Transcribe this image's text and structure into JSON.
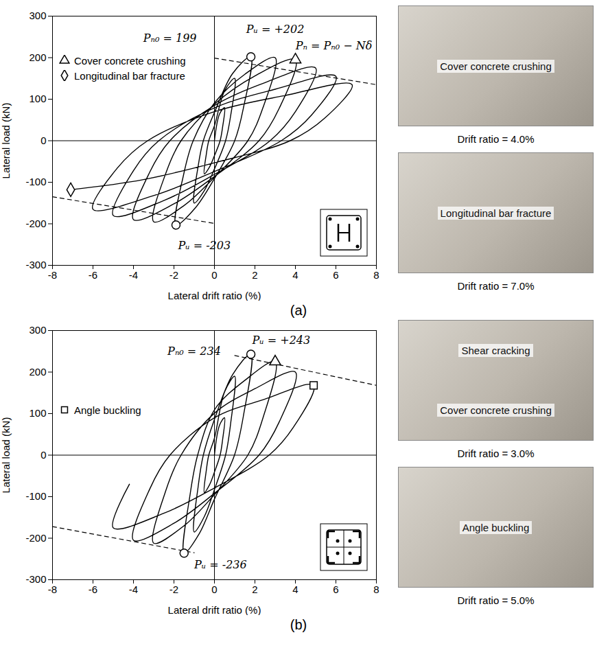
{
  "chart_data": [
    {
      "type": "line",
      "caption": "(a)",
      "x_label": "Lateral drift ratio (%)",
      "y_label": "Lateral load (kN)",
      "xlim": [
        -8,
        8
      ],
      "xticks": [
        -8,
        -6,
        -4,
        -2,
        0,
        2,
        4,
        6,
        8
      ],
      "ylim": [
        -300,
        300
      ],
      "yticks": [
        -300,
        -200,
        -100,
        0,
        100,
        200,
        300
      ],
      "color": "#000000",
      "legend": "top-left",
      "x": [
        0,
        0.25,
        0.5,
        0.4,
        0.28,
        0,
        -0.25,
        -0.5,
        -0.4,
        -0.28,
        0,
        0.5,
        1,
        0.8,
        0.55,
        0,
        -0.5,
        -1,
        -0.8,
        -0.55,
        0,
        0.9,
        1.8,
        1.44,
        1.0,
        0,
        -0.95,
        -1.9,
        -1.52,
        -1.05,
        0,
        1.5,
        3,
        2.4,
        1.65,
        0,
        -1.5,
        -3,
        -2.4,
        -1.65,
        0,
        2,
        4,
        3.2,
        2.2,
        0,
        -2,
        -4,
        -3.2,
        -2.2,
        0,
        2.5,
        5,
        4,
        2.75,
        0,
        -2.5,
        -5,
        -4,
        -2.75,
        0,
        3,
        6,
        4.8,
        3.3,
        0,
        -3,
        -6,
        -4.8,
        -3.3,
        0,
        3.4,
        6.8,
        5.44,
        3.74,
        0,
        -3.55,
        -7.1
      ],
      "values": [
        0,
        64,
        80,
        32,
        0,
        -36,
        -64,
        -80,
        -32,
        0,
        36,
        120,
        150,
        60,
        0,
        -68,
        -120,
        -150,
        -60,
        0,
        68,
        162,
        202,
        81,
        0,
        -91,
        -162,
        -203,
        -81,
        0,
        91,
        160,
        200,
        80,
        0,
        -88,
        -156,
        -195,
        -78,
        0,
        88,
        156,
        195,
        78,
        0,
        -86,
        -152,
        -190,
        -76,
        0,
        85,
        140,
        175,
        70,
        0,
        -81,
        -144,
        -180,
        -72,
        0,
        79,
        124,
        155,
        62,
        0,
        -74,
        -132,
        -165,
        -66,
        0,
        70,
        108,
        135,
        54,
        0,
        -53,
        -94,
        -118
      ],
      "markers": [
        {
          "marker": "circle",
          "x": [
            1.8,
            -1.9
          ],
          "values": [
            202,
            -203
          ]
        },
        {
          "name": "Cover concrete crushing",
          "marker": "triangle",
          "x": [
            4
          ],
          "values": [
            195
          ]
        },
        {
          "name": "Longitudinal bar fracture",
          "marker": "diamond",
          "x": [
            -7.1
          ],
          "values": [
            -118
          ]
        }
      ],
      "reference_lines": [
        {
          "line_style": "dashed",
          "x": [
            0,
            8
          ],
          "values": [
            199,
            135
          ]
        },
        {
          "line_style": "dashed",
          "x": [
            -8,
            0
          ],
          "values": [
            -135,
            -199
          ]
        }
      ],
      "annotations": [
        {
          "text": "Pₙ₀ = 199",
          "x": -2.2,
          "y": 247
        },
        {
          "text": "Pᵤ = +202",
          "x": 3.0,
          "y": 268
        },
        {
          "text": "Pₙ = Pₙ₀ − Nδ",
          "x": 5.9,
          "y": 228
        },
        {
          "text": "Pᵤ = -203",
          "x": -0.5,
          "y": -252
        }
      ],
      "photos": [
        {
          "labels": [
            "Cover concrete crushing"
          ],
          "caption": "Drift ratio = 4.0%"
        },
        {
          "labels": [
            "Longitudinal bar fracture"
          ],
          "caption": "Drift ratio = 7.0%"
        }
      ]
    },
    {
      "type": "line",
      "caption": "(b)",
      "x_label": "Lateral drift ratio (%)",
      "y_label": "Lateral load (kN)",
      "xlim": [
        -8,
        8
      ],
      "xticks": [
        -8,
        -6,
        -4,
        -2,
        0,
        2,
        4,
        6,
        8
      ],
      "ylim": [
        -300,
        300
      ],
      "yticks": [
        -300,
        -200,
        -100,
        0,
        100,
        200,
        300
      ],
      "color": "#000000",
      "legend": "left",
      "x": [
        0,
        0.25,
        0.5,
        0.4,
        0.28,
        0,
        -0.25,
        -0.5,
        -0.4,
        -0.28,
        0,
        0.5,
        1,
        0.8,
        0.55,
        0,
        -0.5,
        -1,
        -0.8,
        -0.55,
        0,
        0.9,
        1.8,
        1.44,
        0.99,
        0,
        -0.75,
        -1.5,
        -1.2,
        -0.83,
        0,
        1.5,
        3,
        2.4,
        1.65,
        0,
        -1.5,
        -3,
        -2.4,
        -1.65,
        0,
        2,
        4,
        3.2,
        2.2,
        0,
        -2,
        -4,
        -3.2,
        -2.2,
        0,
        2.45,
        4.9,
        3.9,
        2.7,
        0,
        -2.5,
        -5,
        -4.2
      ],
      "values": [
        0,
        72,
        90,
        36,
        0,
        -41,
        -72,
        -90,
        -36,
        0,
        41,
        152,
        190,
        76,
        0,
        -83,
        -148,
        -185,
        -74,
        0,
        86,
        194,
        243,
        97,
        0,
        -106,
        -189,
        -236,
        -94,
        0,
        109,
        180,
        225,
        90,
        0,
        -95,
        -170,
        -212,
        -85,
        0,
        101,
        160,
        200,
        80,
        0,
        -92,
        -164,
        -205,
        -82,
        0,
        90,
        134,
        168,
        67,
        0,
        -79,
        -140,
        -175,
        -70
      ],
      "markers": [
        {
          "marker": "circle",
          "x": [
            1.8,
            -1.5
          ],
          "values": [
            243,
            -236
          ]
        },
        {
          "marker": "triangle",
          "x": [
            3
          ],
          "values": [
            225
          ]
        },
        {
          "name": "Angle buckling",
          "marker": "square",
          "x": [
            4.9
          ],
          "values": [
            168
          ]
        }
      ],
      "reference_lines": [
        {
          "line_style": "dashed",
          "x": [
            1,
            8
          ],
          "values": [
            240,
            168
          ]
        },
        {
          "line_style": "dashed",
          "x": [
            -8,
            -1
          ],
          "values": [
            -172,
            -235
          ]
        }
      ],
      "annotations": [
        {
          "text": "Pₙ₀ = 234",
          "x": -1.0,
          "y": 250
        },
        {
          "text": "Pᵤ = +243",
          "x": 3.3,
          "y": 276
        },
        {
          "text": "Pᵤ = -236",
          "x": 0.3,
          "y": -264
        }
      ],
      "photos": [
        {
          "labels": [
            "Shear cracking",
            "Cover concrete crushing"
          ],
          "caption": "Drift ratio = 3.0%"
        },
        {
          "labels": [
            "Angle buckling"
          ],
          "caption": "Drift ratio = 5.0%"
        }
      ]
    }
  ]
}
